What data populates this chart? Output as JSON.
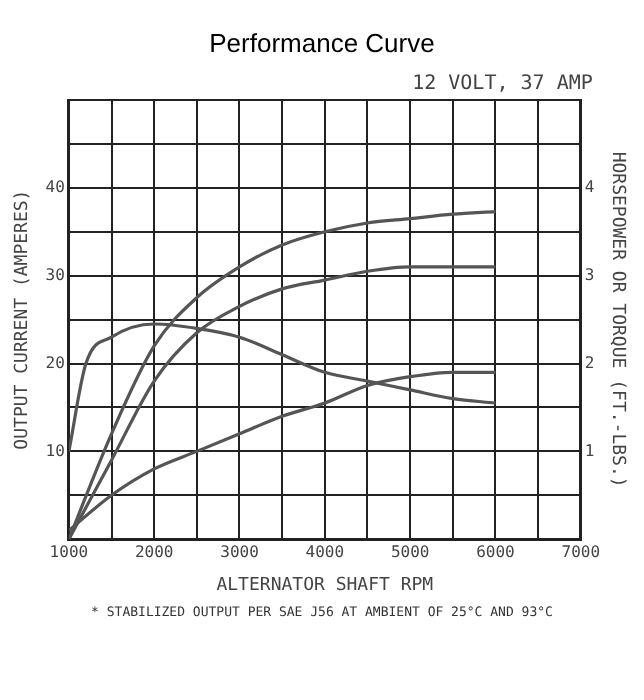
{
  "chart_data": {
    "type": "line",
    "title": "Performance Curve",
    "subtitle": "12 VOLT, 37 AMP",
    "xlabel": "ALTERNATOR SHAFT RPM",
    "ylabel": "OUTPUT CURRENT (AMPERES)",
    "y2label": "HORSEPOWER OR TORQUE (FT.-LBS.)",
    "annotations": [
      "* STABILIZED OUTPUT PER SAE J56 AT AMBIENT OF 25°C AND 93°C"
    ],
    "x": [
      1000,
      1500,
      2000,
      2500,
      3000,
      3500,
      4000,
      4500,
      5000,
      5500,
      6000
    ],
    "series": [
      {
        "color": "#555555",
        "values": [
          0,
          12,
          22,
          27.5,
          31,
          33.5,
          35,
          36,
          36.5,
          37,
          37.3
        ]
      },
      {
        "color": "#555555",
        "values": [
          0,
          9,
          18,
          23.5,
          26.5,
          28.5,
          29.5,
          30.5,
          31,
          31,
          31
        ]
      },
      {
        "color": "#555555",
        "axis": "y2",
        "values": [
          0.1,
          0.5,
          0.8,
          1.0,
          1.2,
          1.4,
          1.55,
          1.75,
          1.85,
          1.9,
          1.9
        ]
      },
      {
        "color": "#555555",
        "axis": "y2",
        "x": [
          1000,
          1200,
          1500,
          2000,
          2500,
          3000,
          3500,
          4000,
          4500,
          5000,
          5500,
          6000
        ],
        "values": [
          1.0,
          2.0,
          2.3,
          2.45,
          2.4,
          2.3,
          2.1,
          1.9,
          1.8,
          1.7,
          1.6,
          1.55
        ]
      }
    ],
    "xlim": [
      1000,
      7000
    ],
    "xticks": [
      1000,
      {
        "value": 1500,
        "label": null
      },
      2000,
      {
        "value": 2500,
        "label": null
      },
      3000,
      {
        "value": 3500,
        "label": null
      },
      4000,
      {
        "value": 4500,
        "label": null
      },
      5000,
      {
        "value": 5500,
        "label": null
      },
      6000,
      {
        "value": 6500,
        "label": null
      },
      7000
    ],
    "ylim": [
      0,
      50
    ],
    "yticks": [
      {
        "value": 0,
        "label": null
      },
      {
        "value": 5,
        "label": null
      },
      10,
      {
        "value": 15,
        "label": null
      },
      20,
      {
        "value": 25,
        "label": null
      },
      30,
      {
        "value": 35,
        "label": null
      },
      40,
      {
        "value": 45,
        "label": null
      },
      {
        "value": 50,
        "label": null
      }
    ],
    "y2lim": [
      0,
      5
    ],
    "y2ticks": [
      1,
      2,
      3,
      4
    ],
    "grid": true,
    "legend": false,
    "marker": "none",
    "line_style": "solid"
  }
}
